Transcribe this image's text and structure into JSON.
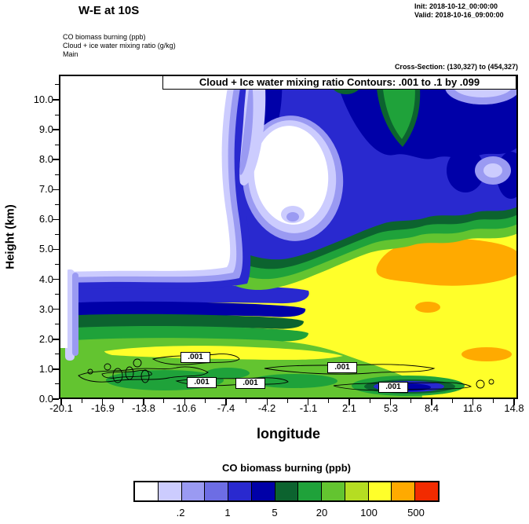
{
  "header": {
    "title": "W-E at 10S",
    "init": "Init: 2018-10-12_00:00:00",
    "valid": "Valid: 2018-10-16_09:00:00",
    "field_lines": [
      "CO biomass burning  (ppb)",
      "Cloud + ice water mixing ratio  (g/kg)",
      "Main"
    ],
    "cross_section": "Cross-Section: (130,327) to (454,327)"
  },
  "chart_data": {
    "type": "heatmap",
    "title": "Cloud + Ice water mixing ratio Contours: .001 to .1 by .099",
    "fill_field": "CO biomass burning (ppb)",
    "contour_field": "Cloud + Ice water mixing ratio (g/kg)",
    "contour_levels_note": ".001 to .1 by .099",
    "contour_line_labels": [
      ".001",
      ".001",
      ".001",
      ".001",
      ".001"
    ],
    "contour_label_positions_lon_km": [
      {
        "lon": -10.5,
        "km": 1.35
      },
      {
        "lon": -10.1,
        "km": 0.55
      },
      {
        "lon": -6.3,
        "km": 0.5
      },
      {
        "lon": 0.7,
        "km": 1.05
      },
      {
        "lon": 4.9,
        "km": 0.4
      }
    ],
    "xlabel": "longitude",
    "ylabel": "Height (km)",
    "x_tick_labels": [
      "-20.1",
      "-16.9",
      "-13.8",
      "-10.6",
      "-7.4",
      "-4.2",
      "-1.1",
      "2.1",
      "5.3",
      "8.4",
      "11.6",
      "14.8"
    ],
    "y_tick_labels": [
      "0.0",
      "1.0",
      "2.0",
      "3.0",
      "4.0",
      "5.0",
      "6.0",
      "7.0",
      "8.0",
      "9.0",
      "10.0"
    ],
    "xlim": [
      -20.1,
      14.8
    ],
    "ylim_km": [
      0,
      10.8
    ],
    "colorbar": {
      "title": "CO biomass burning  (ppb)",
      "tick_labels": [
        ".2",
        "1",
        "5",
        "20",
        "100",
        "500"
      ],
      "colors": [
        "#ffffff",
        "#ccccfe",
        "#9a9af2",
        "#6d6de4",
        "#2929cf",
        "#0000a8",
        "#0c632f",
        "#1fa23a",
        "#63c430",
        "#b5dd22",
        "#ffff2a",
        "#ffaa00",
        "#f22b00"
      ]
    },
    "visual_summary": [
      "Yellow/orange high-CO plume (50-500 ppb) fills the lower troposphere east of about -5 deg below ~5 km",
      "White low-CO air occupies the upper-left (west of ~-7 deg above ~4.5 km)",
      "Blue/dark-blue moderate-CO cloud mass spans ~5-10.5 km across the center and east",
      "White low-CO hole centered near -2 deg at ~7.5 km inside the blue mass",
      "Shallow layer below ~1.5 km carries .001 g/kg cloud+ice water contour lines"
    ]
  }
}
